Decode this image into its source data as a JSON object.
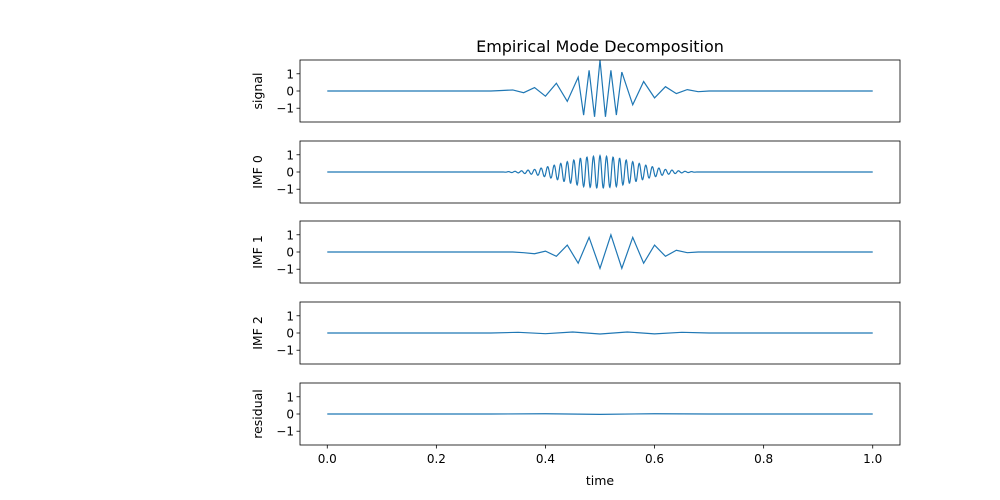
{
  "chart_data": {
    "type": "line",
    "title": "Empirical Mode Decomposition",
    "xlabel": "time",
    "xlim": [
      -0.05,
      1.05
    ],
    "x_ticks": [
      "0.0",
      "0.2",
      "0.4",
      "0.6",
      "0.8",
      "1.0"
    ],
    "x_tick_values": [
      0.0,
      0.2,
      0.4,
      0.6,
      0.8,
      1.0
    ],
    "y_ticks": [
      "1",
      "0",
      "−1"
    ],
    "y_tick_values": [
      1,
      0,
      -1
    ],
    "ylim": [
      -1.8,
      1.8
    ],
    "grid": false,
    "line_color": "#1f77b4",
    "panels": [
      {
        "ylabel": "signal",
        "x": [
          0.0,
          0.3,
          0.32,
          0.34,
          0.36,
          0.38,
          0.4,
          0.42,
          0.44,
          0.46,
          0.47,
          0.48,
          0.49,
          0.5,
          0.51,
          0.52,
          0.53,
          0.54,
          0.56,
          0.58,
          0.6,
          0.62,
          0.64,
          0.66,
          0.68,
          0.7,
          1.0
        ],
        "y": [
          0.0,
          0.0,
          0.03,
          0.06,
          -0.1,
          0.2,
          -0.3,
          0.45,
          -0.6,
          0.8,
          -1.4,
          1.2,
          -1.5,
          1.8,
          -1.5,
          1.2,
          -1.4,
          1.1,
          -0.8,
          0.55,
          -0.4,
          0.25,
          -0.15,
          0.08,
          -0.04,
          0.0,
          0.0
        ]
      },
      {
        "ylabel": "IMF 0",
        "x": [
          0.0,
          0.32,
          0.35,
          0.38,
          0.41,
          0.44,
          0.47,
          0.5,
          0.53,
          0.56,
          0.59,
          0.62,
          0.65,
          0.68,
          1.0
        ],
        "y": [
          0.0,
          0.0,
          0.05,
          0.15,
          0.35,
          0.6,
          0.85,
          0.95,
          0.85,
          0.6,
          0.35,
          0.15,
          0.05,
          0.0,
          0.0
        ],
        "oscillation_period": 0.012
      },
      {
        "ylabel": "IMF 1",
        "x": [
          0.0,
          0.34,
          0.36,
          0.38,
          0.4,
          0.42,
          0.44,
          0.46,
          0.48,
          0.5,
          0.52,
          0.54,
          0.56,
          0.58,
          0.6,
          0.62,
          0.64,
          0.66,
          0.68,
          1.0
        ],
        "y": [
          0.0,
          0.0,
          -0.04,
          -0.1,
          0.05,
          -0.25,
          0.4,
          -0.65,
          0.85,
          -0.95,
          1.0,
          -0.95,
          0.85,
          -0.65,
          0.4,
          -0.25,
          0.1,
          -0.04,
          0.0,
          0.0
        ]
      },
      {
        "ylabel": "IMF 2",
        "x": [
          0.0,
          0.3,
          0.35,
          0.4,
          0.45,
          0.5,
          0.55,
          0.6,
          0.65,
          0.7,
          1.0
        ],
        "y": [
          0.0,
          0.0,
          0.04,
          -0.04,
          0.06,
          -0.06,
          0.06,
          -0.05,
          0.04,
          0.0,
          0.0
        ]
      },
      {
        "ylabel": "residual",
        "x": [
          0.0,
          0.3,
          0.4,
          0.5,
          0.6,
          0.7,
          1.0
        ],
        "y": [
          0.0,
          0.0,
          0.015,
          -0.02,
          0.015,
          0.0,
          0.0
        ]
      }
    ]
  }
}
